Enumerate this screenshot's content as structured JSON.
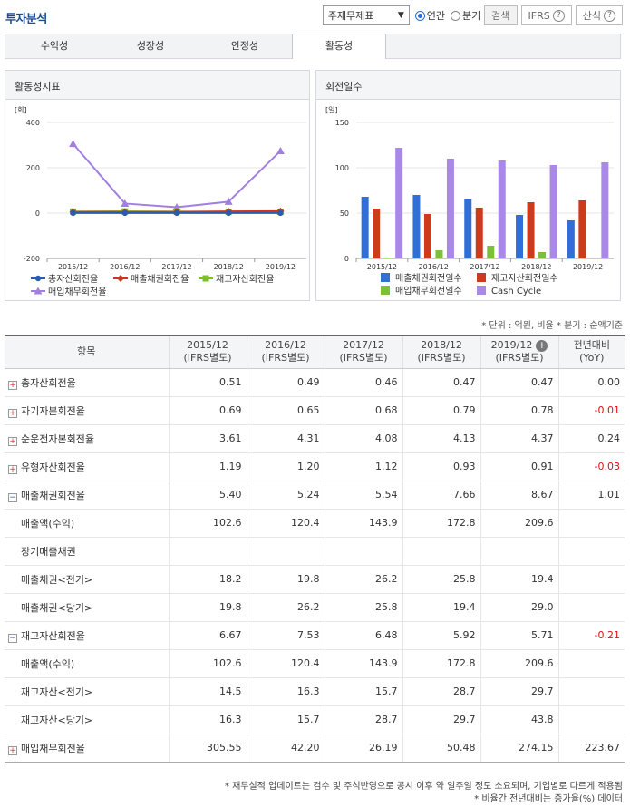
{
  "title": "투자분석",
  "controls": {
    "select_value": "주재무제표",
    "radio_annual": "연간",
    "radio_quarter": "분기",
    "search_label": "검색",
    "ifrs_label": "IFRS",
    "formula_label": "산식",
    "help_glyph": "?"
  },
  "tabs": [
    "수익성",
    "성장성",
    "안정성",
    "활동성"
  ],
  "left_panel": {
    "title": "활동성지표",
    "unit": "[회]",
    "legend": [
      "총자산회전율",
      "매출채권회전율",
      "재고자산회전율",
      "매입채무회전율"
    ]
  },
  "right_panel": {
    "title": "회전일수",
    "unit": "[일]",
    "legend": [
      "매출채권회전일수",
      "재고자산회전일수",
      "매입채무회전일수",
      "Cash Cycle"
    ]
  },
  "chart_data": [
    {
      "type": "line",
      "categories": [
        "2015/12",
        "2016/12",
        "2017/12",
        "2018/12",
        "2019/12"
      ],
      "ylim": [
        -200,
        400
      ],
      "yticks": [
        "400",
        "200",
        "0",
        "-200"
      ],
      "series": [
        {
          "name": "총자산회전율",
          "color": "#2a5db0",
          "marker": "circle",
          "values": [
            0.51,
            0.49,
            0.46,
            0.47,
            0.47
          ]
        },
        {
          "name": "매출채권회전율",
          "color": "#c8371f",
          "marker": "diamond",
          "values": [
            5.4,
            5.24,
            5.54,
            7.66,
            8.67
          ]
        },
        {
          "name": "재고자산회전율",
          "color": "#7cbd2a",
          "marker": "square",
          "values": [
            6.67,
            7.53,
            6.48,
            5.92,
            5.71
          ]
        },
        {
          "name": "매입채무회전율",
          "color": "#a07fe0",
          "marker": "triangle",
          "values": [
            305.55,
            42.2,
            26.19,
            50.48,
            274.15
          ]
        }
      ]
    },
    {
      "type": "bar",
      "categories": [
        "2015/12",
        "2016/12",
        "2017/12",
        "2018/12",
        "2019/12"
      ],
      "ylim": [
        0,
        150
      ],
      "yticks": [
        "150",
        "100",
        "50",
        "0"
      ],
      "series": [
        {
          "name": "매출채권회전일수",
          "color": "#2f6fd6",
          "values": [
            68,
            70,
            66,
            48,
            42
          ]
        },
        {
          "name": "재고자산회전일수",
          "color": "#cc3b1c",
          "values": [
            55,
            49,
            56,
            62,
            64
          ]
        },
        {
          "name": "매입채무회전일수",
          "color": "#7cc03a",
          "values": [
            1,
            9,
            14,
            7,
            0
          ]
        },
        {
          "name": "Cash Cycle",
          "color": "#a988e8",
          "values": [
            122,
            110,
            108,
            103,
            106
          ]
        }
      ]
    }
  ],
  "unit_note": "* 단위 : 억원, 비율   * 분기 : 순액기준",
  "table": {
    "headers": [
      "항목",
      "2015/12\n(IFRS별도)",
      "2016/12\n(IFRS별도)",
      "2017/12\n(IFRS별도)",
      "2018/12\n(IFRS별도)",
      "2019/12\n(IFRS별도)",
      "전년대비\n(YoY)"
    ],
    "rows": [
      {
        "label": "총자산회전율",
        "toggle": "plus",
        "values": [
          "0.51",
          "0.49",
          "0.46",
          "0.47",
          "0.47",
          "0.00"
        ]
      },
      {
        "label": "자기자본회전율",
        "toggle": "plus",
        "values": [
          "0.69",
          "0.65",
          "0.68",
          "0.79",
          "0.78",
          "-0.01"
        ]
      },
      {
        "label": "순운전자본회전율",
        "toggle": "plus",
        "values": [
          "3.61",
          "4.31",
          "4.08",
          "4.13",
          "4.37",
          "0.24"
        ]
      },
      {
        "label": "유형자산회전율",
        "toggle": "plus",
        "values": [
          "1.19",
          "1.20",
          "1.12",
          "0.93",
          "0.91",
          "-0.03"
        ]
      },
      {
        "label": "매출채권회전율",
        "toggle": "minus",
        "values": [
          "5.40",
          "5.24",
          "5.54",
          "7.66",
          "8.67",
          "1.01"
        ]
      },
      {
        "label": "매출액(수익)",
        "toggle": "",
        "values": [
          "102.6",
          "120.4",
          "143.9",
          "172.8",
          "209.6",
          ""
        ]
      },
      {
        "label": "장기매출채권",
        "toggle": "",
        "values": [
          "",
          "",
          "",
          "",
          "",
          ""
        ]
      },
      {
        "label": "매출채권<전기>",
        "toggle": "",
        "values": [
          "18.2",
          "19.8",
          "26.2",
          "25.8",
          "19.4",
          ""
        ]
      },
      {
        "label": "매출채권<당기>",
        "toggle": "",
        "values": [
          "19.8",
          "26.2",
          "25.8",
          "19.4",
          "29.0",
          ""
        ]
      },
      {
        "label": "재고자산회전율",
        "toggle": "minus",
        "values": [
          "6.67",
          "7.53",
          "6.48",
          "5.92",
          "5.71",
          "-0.21"
        ]
      },
      {
        "label": "매출액(수익)",
        "toggle": "",
        "values": [
          "102.6",
          "120.4",
          "143.9",
          "172.8",
          "209.6",
          ""
        ]
      },
      {
        "label": "재고자산<전기>",
        "toggle": "",
        "values": [
          "14.5",
          "16.3",
          "15.7",
          "28.7",
          "29.7",
          ""
        ]
      },
      {
        "label": "재고자산<당기>",
        "toggle": "",
        "values": [
          "16.3",
          "15.7",
          "28.7",
          "29.7",
          "43.8",
          ""
        ]
      },
      {
        "label": "매입채무회전율",
        "toggle": "plus",
        "values": [
          "305.55",
          "42.20",
          "26.19",
          "50.48",
          "274.15",
          "223.67"
        ]
      }
    ]
  },
  "footnotes": [
    "* 재무실적 업데이트는 검수 및 주석반영으로 공시 이후 약 일주일 정도 소요되며, 기업별로 다르게 적용됨",
    "* 비율간 전년대비는 증가율(%) 데이터"
  ]
}
